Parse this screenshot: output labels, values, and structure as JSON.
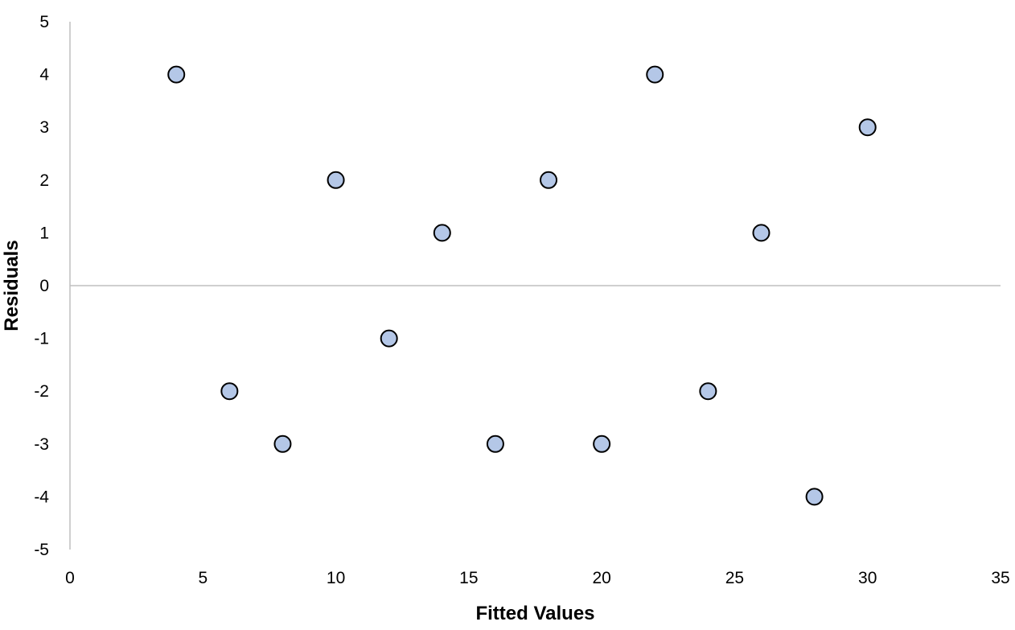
{
  "chart_data": {
    "type": "scatter",
    "title": "",
    "xlabel": "Fitted Values",
    "ylabel": "Residuals",
    "xlim": [
      0,
      35
    ],
    "ylim": [
      -5,
      5
    ],
    "x_ticks": [
      0,
      5,
      10,
      15,
      20,
      25,
      30,
      35
    ],
    "y_ticks": [
      5,
      4,
      3,
      2,
      1,
      0,
      -1,
      -2,
      -3,
      -4,
      -5
    ],
    "x_tick_labels": [
      "0",
      "5",
      "10",
      "15",
      "20",
      "25",
      "30",
      "35"
    ],
    "y_tick_labels": [
      "5",
      "4",
      "3",
      "2",
      "1",
      "0",
      "-1",
      "-2",
      "-3",
      "-4",
      "-5"
    ],
    "grid": false,
    "legend": "none",
    "series": [
      {
        "x": [
          4,
          6,
          8,
          10,
          12,
          14,
          16,
          18,
          20,
          22,
          24,
          26,
          28,
          30
        ],
        "y": [
          4,
          -2,
          -3,
          2,
          -1,
          1,
          -3,
          2,
          -3,
          4,
          -2,
          1,
          -4,
          3
        ],
        "marker_fill": "#b4c7e7",
        "marker_stroke": "#000000"
      }
    ],
    "axis_color": "#bfbfbf"
  }
}
